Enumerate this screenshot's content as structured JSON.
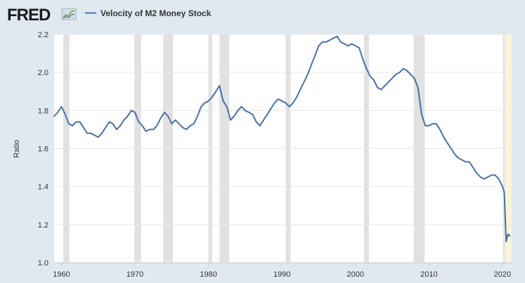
{
  "header": {
    "logo_text": "FRED",
    "logo_icon": "fred-chart-icon"
  },
  "chart_data": {
    "type": "line",
    "title": "",
    "xlabel": "",
    "ylabel": "Ratio",
    "xlim": [
      1959.0,
      2021.25
    ],
    "ylim": [
      1.0,
      2.2
    ],
    "yticks": [
      1.0,
      1.2,
      1.4,
      1.6,
      1.8,
      2.0,
      2.2
    ],
    "ytick_labels": [
      "1.0",
      "1.2",
      "1.4",
      "1.6",
      "1.8",
      "2.0",
      "2.2"
    ],
    "xticks": [
      1960,
      1970,
      1980,
      1990,
      2000,
      2010,
      2020
    ],
    "xtick_labels": [
      "1960",
      "1970",
      "1980",
      "1990",
      "2000",
      "2010",
      "2020"
    ],
    "grid": true,
    "legend_position": "top-left",
    "colors": {
      "line": "#4572a7",
      "recession": "#e1e1e1",
      "highlight": "#fbf4d6",
      "plot_bg": "#ffffff",
      "page_bg": "#e1e9f0"
    },
    "recessions": [
      [
        1960.25,
        1961.08
      ],
      [
        1969.92,
        1970.83
      ],
      [
        1973.83,
        1975.17
      ],
      [
        1980.0,
        1980.5
      ],
      [
        1981.5,
        1982.83
      ],
      [
        1990.5,
        1991.17
      ],
      [
        2001.17,
        2001.83
      ],
      [
        2007.92,
        2009.42
      ],
      [
        2020.08,
        2020.33
      ]
    ],
    "highlight": [
      2020.33,
      2021.25
    ],
    "series": [
      {
        "name": "Velocity of M2 Money Stock",
        "x": [
          1959.0,
          1959.5,
          1960.0,
          1960.5,
          1961.0,
          1961.5,
          1962.0,
          1962.5,
          1963.0,
          1963.5,
          1964.0,
          1964.5,
          1965.0,
          1965.5,
          1966.0,
          1966.5,
          1967.0,
          1967.5,
          1968.0,
          1968.5,
          1969.0,
          1969.5,
          1970.0,
          1970.5,
          1971.0,
          1971.5,
          1972.0,
          1972.5,
          1973.0,
          1973.5,
          1974.0,
          1974.5,
          1975.0,
          1975.5,
          1976.0,
          1976.5,
          1977.0,
          1977.5,
          1978.0,
          1978.5,
          1979.0,
          1979.5,
          1980.0,
          1980.5,
          1981.0,
          1981.5,
          1982.0,
          1982.5,
          1983.0,
          1983.5,
          1984.0,
          1984.5,
          1985.0,
          1985.5,
          1986.0,
          1986.5,
          1987.0,
          1987.5,
          1988.0,
          1988.5,
          1989.0,
          1989.5,
          1990.0,
          1990.5,
          1991.0,
          1991.5,
          1992.0,
          1992.5,
          1993.0,
          1993.5,
          1994.0,
          1994.5,
          1995.0,
          1995.5,
          1996.0,
          1996.5,
          1997.0,
          1997.5,
          1998.0,
          1998.5,
          1999.0,
          1999.5,
          2000.0,
          2000.5,
          2001.0,
          2001.5,
          2002.0,
          2002.5,
          2003.0,
          2003.5,
          2004.0,
          2004.5,
          2005.0,
          2005.5,
          2006.0,
          2006.5,
          2007.0,
          2007.5,
          2008.0,
          2008.5,
          2009.0,
          2009.5,
          2010.0,
          2010.5,
          2011.0,
          2011.5,
          2012.0,
          2012.5,
          2013.0,
          2013.5,
          2014.0,
          2014.5,
          2015.0,
          2015.5,
          2016.0,
          2016.5,
          2017.0,
          2017.5,
          2018.0,
          2018.5,
          2019.0,
          2019.5,
          2020.0,
          2020.25,
          2020.5,
          2020.75,
          2021.0
        ],
        "values": [
          1.77,
          1.79,
          1.82,
          1.78,
          1.73,
          1.72,
          1.74,
          1.74,
          1.71,
          1.68,
          1.68,
          1.67,
          1.66,
          1.68,
          1.71,
          1.74,
          1.73,
          1.7,
          1.72,
          1.75,
          1.77,
          1.8,
          1.79,
          1.74,
          1.72,
          1.69,
          1.7,
          1.7,
          1.72,
          1.76,
          1.79,
          1.77,
          1.73,
          1.75,
          1.73,
          1.71,
          1.7,
          1.72,
          1.73,
          1.77,
          1.82,
          1.84,
          1.85,
          1.87,
          1.9,
          1.93,
          1.85,
          1.82,
          1.75,
          1.77,
          1.8,
          1.82,
          1.8,
          1.79,
          1.78,
          1.74,
          1.72,
          1.75,
          1.78,
          1.81,
          1.84,
          1.86,
          1.85,
          1.84,
          1.82,
          1.84,
          1.87,
          1.91,
          1.95,
          1.99,
          2.04,
          2.09,
          2.14,
          2.16,
          2.16,
          2.17,
          2.18,
          2.19,
          2.16,
          2.15,
          2.14,
          2.15,
          2.14,
          2.13,
          2.07,
          2.02,
          1.98,
          1.96,
          1.92,
          1.91,
          1.93,
          1.95,
          1.97,
          1.99,
          2.0,
          2.02,
          2.01,
          1.99,
          1.97,
          1.92,
          1.78,
          1.72,
          1.72,
          1.73,
          1.73,
          1.7,
          1.66,
          1.63,
          1.6,
          1.57,
          1.55,
          1.54,
          1.53,
          1.53,
          1.5,
          1.47,
          1.45,
          1.44,
          1.45,
          1.46,
          1.46,
          1.44,
          1.4,
          1.37,
          1.11,
          1.15,
          1.14
        ]
      }
    ]
  }
}
